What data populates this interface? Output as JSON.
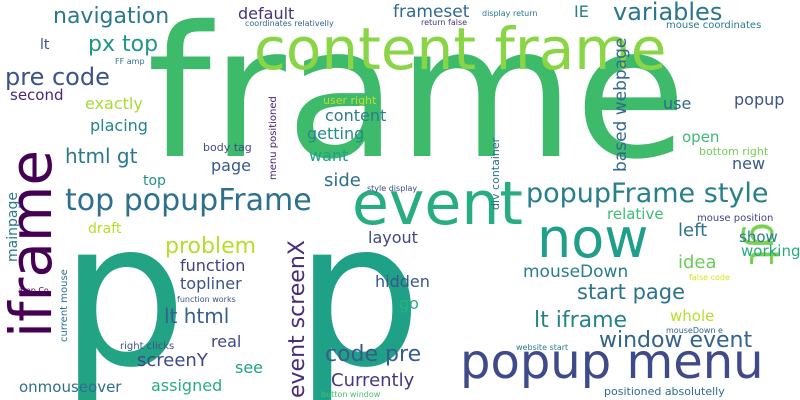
{
  "words": [
    {
      "text": "frame",
      "color": "#3dbb6b"
    },
    {
      "text": "p",
      "color": "#22a384"
    },
    {
      "text": "p",
      "color": "#1fa187"
    },
    {
      "text": "content frame",
      "color": "#8ad546"
    },
    {
      "text": "iframe",
      "color": "#440154"
    },
    {
      "text": "event",
      "color": "#27ad81"
    },
    {
      "text": "now",
      "color": "#1f9e89"
    },
    {
      "text": "popup menu",
      "color": "#3e4a89"
    },
    {
      "text": "gt",
      "color": "#7ad151"
    },
    {
      "text": "top popupFrame",
      "color": "#2d708e"
    },
    {
      "text": "popupFrame style",
      "color": "#277f8e"
    },
    {
      "text": "navigation",
      "color": "#2a788e"
    },
    {
      "text": "variables",
      "color": "#2a768e"
    },
    {
      "text": "pre code",
      "color": "#3b528b"
    },
    {
      "text": "px top",
      "color": "#1f968b"
    },
    {
      "text": "window event",
      "color": "#33638d"
    },
    {
      "text": "lt iframe",
      "color": "#26818e"
    },
    {
      "text": "start page",
      "color": "#2c728e"
    },
    {
      "text": "code pre",
      "color": "#365c8d"
    },
    {
      "text": "event screenX",
      "color": "#472c7a"
    },
    {
      "text": "problem",
      "color": "#b5de2b"
    },
    {
      "text": "html gt",
      "color": "#2a788e"
    },
    {
      "text": "lt html",
      "color": "#355f8d"
    },
    {
      "text": "frameset",
      "color": "#31688e"
    },
    {
      "text": "mouseDown",
      "color": "#287d8e"
    },
    {
      "text": "based webpage",
      "color": "#31688e"
    },
    {
      "text": "screenY",
      "color": "#3e4989"
    },
    {
      "text": "Currently",
      "color": "#453781"
    },
    {
      "text": "default",
      "color": "#46337f"
    },
    {
      "text": "exactly",
      "color": "#a8db34"
    },
    {
      "text": "placing",
      "color": "#25838e"
    },
    {
      "text": "getting",
      "color": "#23898e"
    },
    {
      "text": "content",
      "color": "#287d8e"
    },
    {
      "text": "want",
      "color": "#1fa088"
    },
    {
      "text": "page",
      "color": "#38588c"
    },
    {
      "text": "side",
      "color": "#2e6e8e"
    },
    {
      "text": "layout",
      "color": "#3f4788"
    },
    {
      "text": "left",
      "color": "#2c728e"
    },
    {
      "text": "idea",
      "color": "#6ccd5a"
    },
    {
      "text": "working",
      "color": "#25ab82"
    },
    {
      "text": "show",
      "color": "#277f8e"
    },
    {
      "text": "function",
      "color": "#433e85"
    },
    {
      "text": "topliner",
      "color": "#3b528b"
    },
    {
      "text": "hidden",
      "color": "#39568c"
    },
    {
      "text": "go",
      "color": "#2ab07f"
    },
    {
      "text": "real",
      "color": "#404588"
    },
    {
      "text": "see",
      "color": "#1fa287"
    },
    {
      "text": "assigned",
      "color": "#29af7f"
    },
    {
      "text": "onmouseover",
      "color": "#2e6f8e"
    },
    {
      "text": "whole",
      "color": "#b8de29"
    },
    {
      "text": "open",
      "color": "#3bbb75"
    },
    {
      "text": "popup",
      "color": "#3b528b"
    },
    {
      "text": "use",
      "color": "#31688e"
    },
    {
      "text": "new",
      "color": "#38598c"
    },
    {
      "text": "relative",
      "color": "#3dbc74"
    },
    {
      "text": "IE",
      "color": "#287c8e"
    },
    {
      "text": "second",
      "color": "#482878"
    },
    {
      "text": "mainpage",
      "color": "#2a788e"
    },
    {
      "text": "draft",
      "color": "#b5de2b"
    },
    {
      "text": "top",
      "color": "#21908d"
    },
    {
      "text": "lt",
      "color": "#3b528b"
    },
    {
      "text": "body tag",
      "color": "#3e4c8a"
    },
    {
      "text": "user right",
      "color": "#bddf26"
    },
    {
      "text": "menu positioned",
      "color": "#482173"
    },
    {
      "text": "div container",
      "color": "#2d708e"
    },
    {
      "text": "bottom right",
      "color": "#75d054"
    },
    {
      "text": "mouse position",
      "color": "#404588"
    },
    {
      "text": "mouse coordinates",
      "color": "#2a788e"
    },
    {
      "text": "coordinates relativelly",
      "color": "#31688e"
    },
    {
      "text": "return false",
      "color": "#46327e"
    },
    {
      "text": "display return",
      "color": "#2a788e"
    },
    {
      "text": "FF amp",
      "color": "#2c738e"
    },
    {
      "text": "style display",
      "color": "#3e4a89"
    },
    {
      "text": "false code",
      "color": "#dde318"
    },
    {
      "text": "function works",
      "color": "#3b528b"
    },
    {
      "text": "amp Co",
      "color": "#450559"
    },
    {
      "text": "current mouse",
      "color": "#2d708e"
    },
    {
      "text": "right clicks",
      "color": "#3b528b"
    },
    {
      "text": "mouseDown e",
      "color": "#33628d"
    },
    {
      "text": "website start",
      "color": "#287d8e"
    },
    {
      "text": "positioned absolutelly",
      "color": "#2e6e8e"
    },
    {
      "text": "button window",
      "color": "#4ac16d"
    }
  ]
}
